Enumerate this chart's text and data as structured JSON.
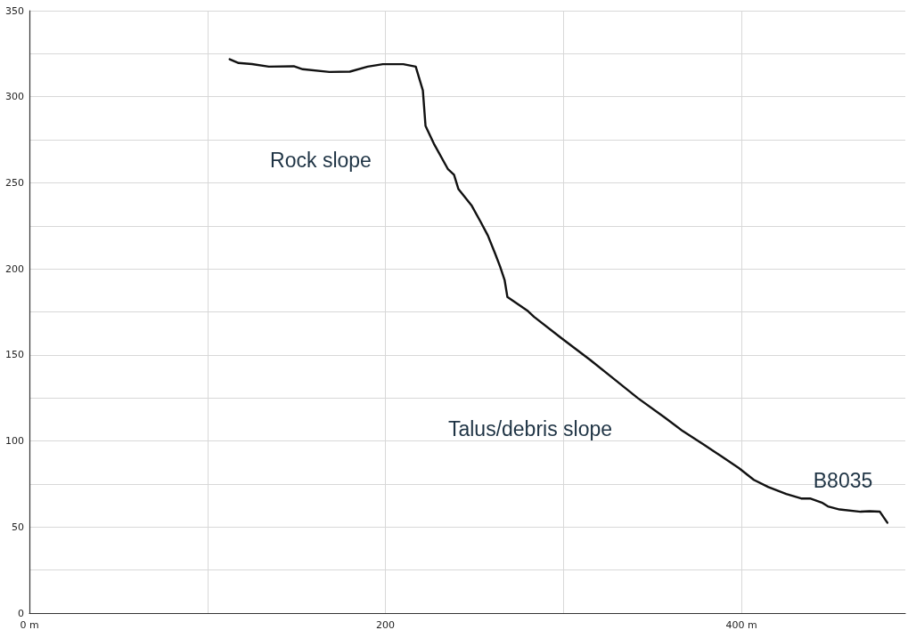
{
  "chart_data": {
    "type": "line",
    "x": [
      112.5,
      117.5,
      125,
      134.5,
      148.5,
      153.5,
      168.5,
      180,
      190,
      198.5,
      210,
      217,
      221,
      222.5,
      227.5,
      235,
      238.5,
      241,
      248.5,
      253.5,
      257.5,
      261.5,
      264.4,
      266.9,
      268.5,
      280,
      283.5,
      298.5,
      315,
      328.5,
      341.9,
      356.9,
      366.9,
      378.5,
      388.5,
      398.5,
      406.9,
      415.1,
      425.1,
      433.5,
      438.5,
      445.1,
      448.5,
      455.1,
      466.9,
      471.9,
      477.7,
      481.9
    ],
    "series": [
      {
        "color": "#111111",
        "values": [
          321.8,
          319.6,
          319,
          317.5,
          317.7,
          316,
          314.4,
          314.6,
          317.5,
          318.9,
          318.9,
          317.5,
          303.7,
          283.1,
          272.1,
          258.1,
          254.7,
          246.3,
          236.6,
          227.2,
          219.4,
          209.1,
          201.3,
          193.6,
          183.6,
          175.5,
          172.1,
          160,
          147.1,
          135.9,
          124.8,
          113.6,
          105.8,
          98.1,
          91.2,
          84.3,
          77.4,
          73.2,
          69.2,
          66.6,
          66.6,
          64.2,
          62,
          60.2,
          58.9,
          59.2,
          58.9,
          52.5
        ]
      }
    ],
    "xlim": [
      0,
      492
    ],
    "ylim": [
      0,
      350
    ],
    "xticks": [
      {
        "value": 0,
        "label": "0 m"
      },
      {
        "value": 100,
        "label": null
      },
      {
        "value": 200,
        "label": "200"
      },
      {
        "value": 300,
        "label": null
      },
      {
        "value": 400,
        "label": "400 m"
      }
    ],
    "yticks": [
      0,
      {
        "value": 25,
        "label": null
      },
      50,
      {
        "value": 75,
        "label": null
      },
      100,
      {
        "value": 125,
        "label": null
      },
      150,
      {
        "value": 175,
        "label": null
      },
      200,
      {
        "value": 225,
        "label": null
      },
      250,
      {
        "value": 275,
        "label": null
      },
      300,
      {
        "value": 325,
        "label": null
      },
      350
    ],
    "annotations": [
      "Rock slope",
      "Talus/debris slope",
      "B8035"
    ],
    "grid": true,
    "marker": "none",
    "line_style": "solid"
  }
}
